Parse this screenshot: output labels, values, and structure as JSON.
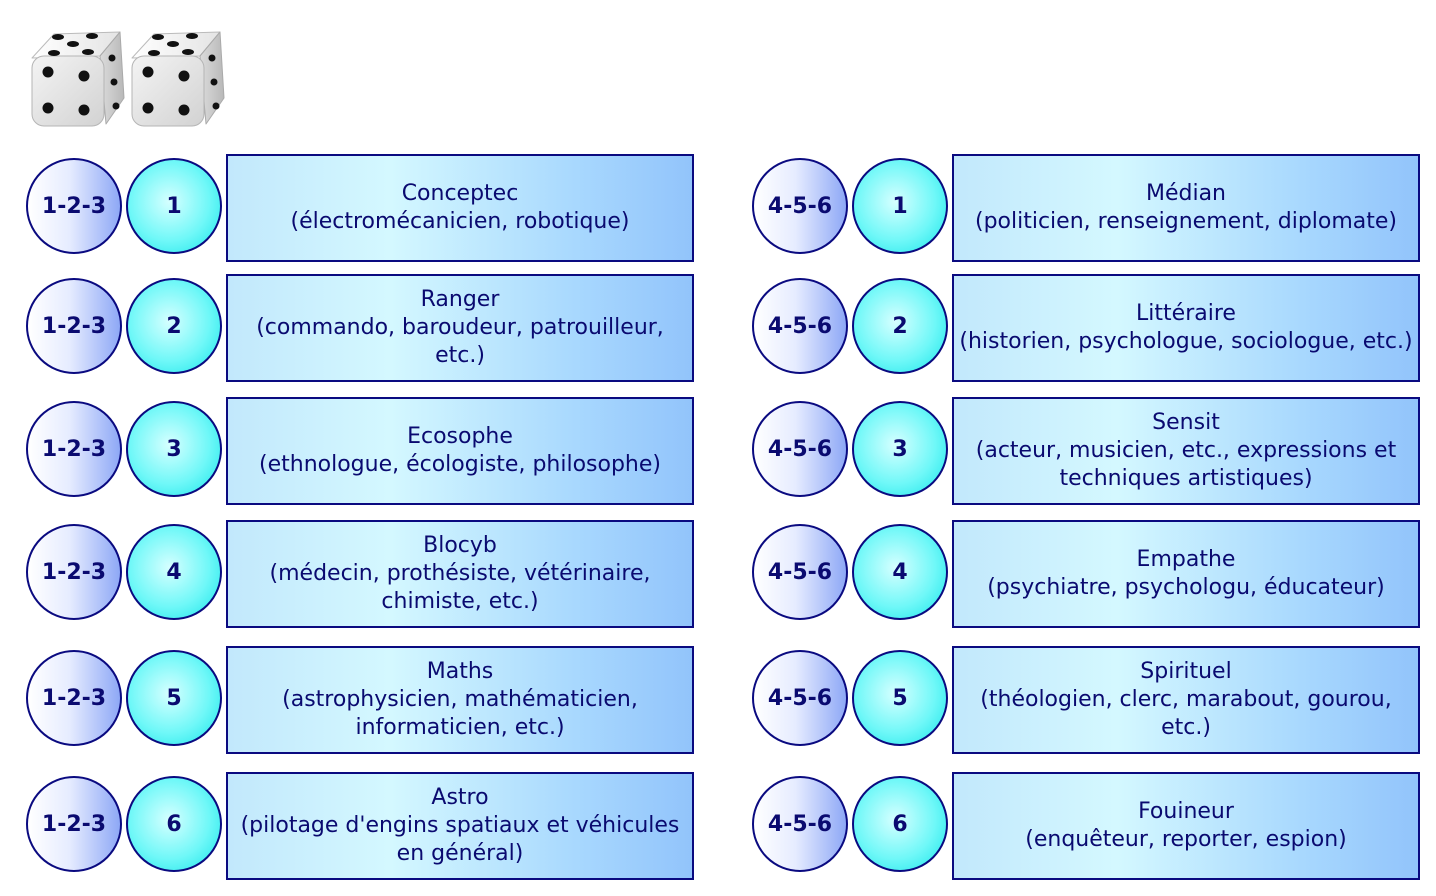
{
  "dice_icon": "two-dice-five-pips",
  "colors": {
    "border": "#0a0a80",
    "text": "#0a0a70",
    "number_circle": "#14e4e8",
    "box_fill": "#a8d8fe"
  },
  "left": {
    "group": "1-2-3",
    "rows": [
      {
        "num": "1",
        "name": "Conceptec",
        "detail": "(électromécanicien, robotique)"
      },
      {
        "num": "2",
        "name": "Ranger",
        "detail": "(commando, baroudeur, patrouilleur, etc.)"
      },
      {
        "num": "3",
        "name": "Ecosophe",
        "detail": "(ethnologue, écologiste, philosophe)"
      },
      {
        "num": "4",
        "name": "Blocyb",
        "detail": "(médecin, prothésiste, vétérinaire, chimiste, etc.)"
      },
      {
        "num": "5",
        "name": "Maths",
        "detail": "(astrophysicien, mathématicien, informaticien, etc.)"
      },
      {
        "num": "6",
        "name": "Astro",
        "detail": "(pilotage d'engins spatiaux et véhicules en général)"
      }
    ]
  },
  "right": {
    "group": "4-5-6",
    "rows": [
      {
        "num": "1",
        "name": "Médian",
        "detail": "(politicien, renseignement, diplomate)"
      },
      {
        "num": "2",
        "name": "Littéraire",
        "detail": "(historien, psychologue, sociologue, etc.)"
      },
      {
        "num": "3",
        "name": "Sensit",
        "detail": "(acteur, musicien, etc., expressions et techniques artistiques)"
      },
      {
        "num": "4",
        "name": "Empathe",
        "detail": "(psychiatre, psychologu, éducateur)"
      },
      {
        "num": "5",
        "name": "Spirituel",
        "detail": "(théologien, clerc, marabout, gourou, etc.)"
      },
      {
        "num": "6",
        "name": "Fouineur",
        "detail": "(enquêteur, reporter, espion)"
      }
    ]
  }
}
